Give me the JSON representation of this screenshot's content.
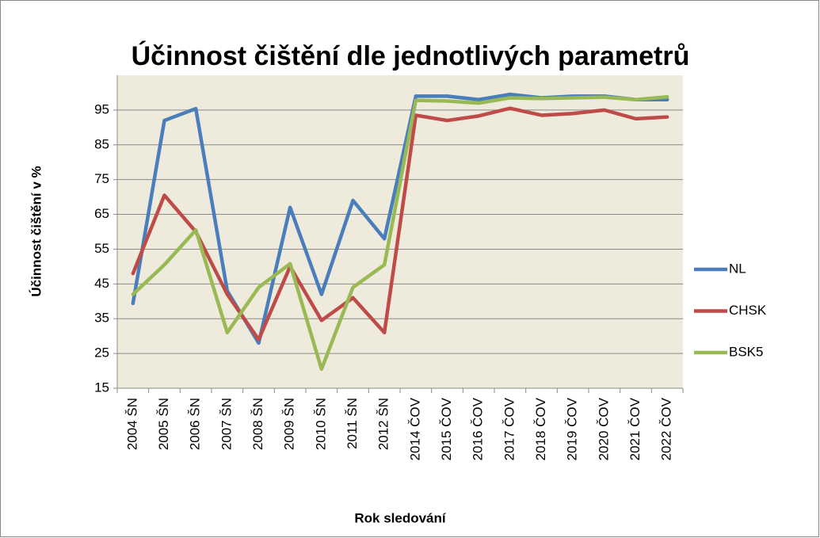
{
  "chart_data": {
    "type": "line",
    "title": "Účinnost čištění dle jednotlivých parametrů",
    "x_label": "Rok sledování",
    "y_label": "Účinnost čištění v %",
    "categories": [
      "2004 ŠN",
      "2005 ŠN",
      "2006 ŠN",
      "2007 ŠN",
      "2008 ŠN",
      "2009 ŠN",
      "2010 ŠN",
      "2011 ŠN",
      "2012 ŠN",
      "2014 ČOV",
      "2015 ČOV",
      "2016 ČOV",
      "2017 ČOV",
      "2018 ČOV",
      "2019 ČOV",
      "2020 ČOV",
      "2021 ČOV",
      "2022 ČOV"
    ],
    "series": [
      {
        "name": "NL",
        "color": "#4a7ebb",
        "values": [
          39.4,
          92,
          95.4,
          43,
          28,
          67,
          42,
          69,
          58,
          99,
          99,
          98,
          99.5,
          98.5,
          99,
          99,
          98,
          98
        ]
      },
      {
        "name": "CHSK",
        "color": "#be4b48",
        "values": [
          48,
          70.5,
          60,
          42,
          29,
          50,
          34.5,
          41,
          31,
          93.5,
          92,
          93.3,
          95.5,
          93.5,
          94,
          95,
          92.5,
          93
        ]
      },
      {
        "name": "BSK5",
        "color": "#98b954",
        "values": [
          42,
          50.5,
          60.5,
          31,
          44,
          50.8,
          20.5,
          44,
          50.5,
          97.8,
          97.6,
          97,
          98.5,
          98.3,
          98.5,
          98.7,
          98,
          98.8
        ]
      }
    ],
    "ylim": [
      15,
      105
    ],
    "yticks": [
      15,
      25,
      35,
      45,
      55,
      65,
      75,
      85,
      95
    ],
    "grid": true,
    "legend": "right"
  }
}
